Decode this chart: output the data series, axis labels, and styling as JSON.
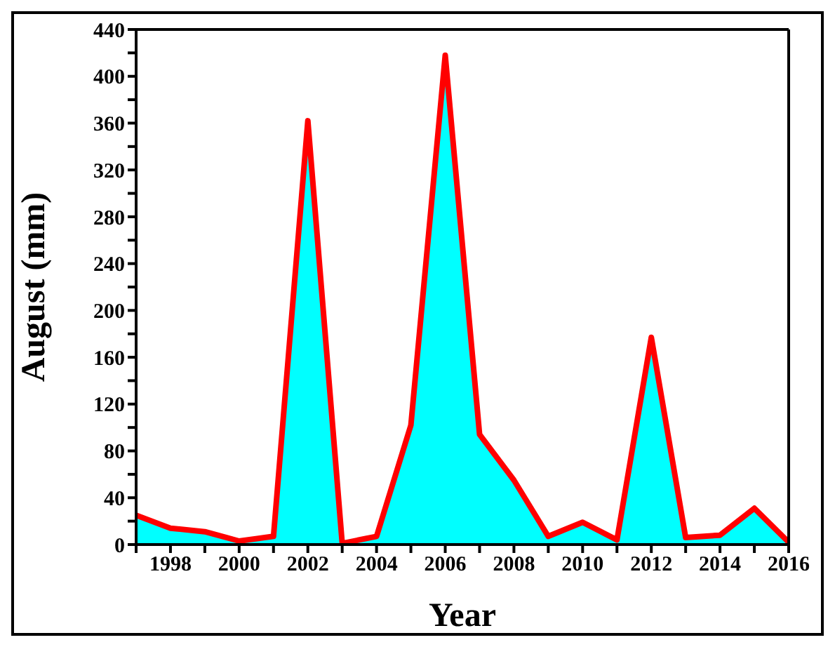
{
  "chart_data": {
    "type": "area",
    "xlabel": "Year",
    "ylabel": "August (mm)",
    "x": [
      1997,
      1998,
      1999,
      2000,
      2001,
      2002,
      2003,
      2004,
      2005,
      2006,
      2007,
      2008,
      2009,
      2010,
      2011,
      2012,
      2013,
      2014,
      2015,
      2016
    ],
    "series": [
      {
        "color": "#00ffff",
        "values": [
          25,
          14,
          11,
          3,
          7,
          362,
          1,
          7,
          102,
          418,
          94,
          55,
          7,
          19,
          4,
          177,
          6,
          8,
          31,
          2
        ]
      }
    ],
    "xlim": [
      1997,
      2016
    ],
    "xticks": [
      {
        "value": 1997,
        "label": null
      },
      1998,
      {
        "value": 1999,
        "label": null
      },
      2000,
      {
        "value": 2001,
        "label": null
      },
      2002,
      {
        "value": 2003,
        "label": null
      },
      2004,
      {
        "value": 2005,
        "label": null
      },
      2006,
      {
        "value": 2007,
        "label": null
      },
      2008,
      {
        "value": 2009,
        "label": null
      },
      2010,
      {
        "value": 2011,
        "label": null
      },
      2012,
      {
        "value": 2013,
        "label": null
      },
      2014,
      {
        "value": 2015,
        "label": null
      },
      2016
    ],
    "ylim": [
      0,
      440
    ],
    "yticks": [
      0,
      {
        "value": 20,
        "label": null
      },
      40,
      {
        "value": 60,
        "label": null
      },
      80,
      {
        "value": 100,
        "label": null
      },
      120,
      {
        "value": 140,
        "label": null
      },
      160,
      {
        "value": 180,
        "label": null
      },
      200,
      {
        "value": 220,
        "label": null
      },
      240,
      {
        "value": 260,
        "label": null
      },
      280,
      {
        "value": 300,
        "label": null
      },
      320,
      {
        "value": 340,
        "label": null
      },
      360,
      {
        "value": 380,
        "label": null
      },
      400,
      {
        "value": 420,
        "label": null
      },
      440
    ],
    "grid": false,
    "legend": false
  }
}
